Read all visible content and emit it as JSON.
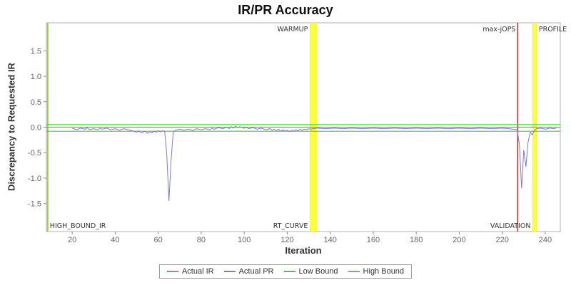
{
  "chart_data": {
    "type": "line",
    "title": "IR/PR Accuracy",
    "xlabel": "Iteration",
    "ylabel": "Discrepancy to Requested IR",
    "xlim": [
      8,
      247
    ],
    "ylim": [
      -2.05,
      2.05
    ],
    "xticks": [
      20,
      40,
      60,
      80,
      100,
      120,
      140,
      160,
      180,
      200,
      220,
      240
    ],
    "yticks": [
      -1.5,
      -1.0,
      -0.5,
      0.0,
      0.5,
      1.0,
      1.5
    ],
    "grid": false,
    "legend_position": "bottom",
    "colors": {
      "plot_border": "#b0b0b0",
      "tick_label": "#666666",
      "phase_label": "#333333",
      "band": "#ffff3d",
      "band_edge": "#e8e800"
    },
    "series": [
      {
        "name": "Actual IR",
        "color": "#e96a6a",
        "width": 1.2,
        "points": [
          [
            8,
            0.0
          ],
          [
            247,
            0.0
          ]
        ]
      },
      {
        "name": "Low Bound",
        "color": "#3fca3f",
        "width": 1.2,
        "points": [
          [
            8,
            -0.08
          ],
          [
            247,
            -0.08
          ]
        ]
      },
      {
        "name": "High Bound",
        "color": "#46d446",
        "width": 1.2,
        "points": [
          [
            8,
            0.05
          ],
          [
            247,
            0.05
          ]
        ]
      },
      {
        "name": "Actual PR",
        "color": "#7b7bd0",
        "width": 1,
        "points": [
          [
            20,
            -0.02
          ],
          [
            22,
            -0.05
          ],
          [
            24,
            -0.02
          ],
          [
            26,
            -0.04
          ],
          [
            27,
            -0.01
          ],
          [
            28,
            -0.05
          ],
          [
            30,
            -0.03
          ],
          [
            32,
            -0.05
          ],
          [
            33,
            -0.02
          ],
          [
            34,
            -0.04
          ],
          [
            36,
            -0.02
          ],
          [
            38,
            -0.05
          ],
          [
            40,
            -0.03
          ],
          [
            42,
            -0.06
          ],
          [
            44,
            -0.03
          ],
          [
            46,
            -0.05
          ],
          [
            48,
            -0.07
          ],
          [
            50,
            -0.1
          ],
          [
            51,
            -0.07
          ],
          [
            52,
            -0.11
          ],
          [
            54,
            -0.08
          ],
          [
            55,
            -0.12
          ],
          [
            56,
            -0.09
          ],
          [
            57,
            -0.11
          ],
          [
            58,
            -0.08
          ],
          [
            59,
            -0.1
          ],
          [
            60,
            -0.07
          ],
          [
            61,
            -0.09
          ],
          [
            62,
            -0.07
          ],
          [
            63,
            -0.08
          ],
          [
            64,
            -0.55
          ],
          [
            65,
            -1.45
          ],
          [
            66,
            -0.65
          ],
          [
            67,
            -0.1
          ],
          [
            68,
            -0.06
          ],
          [
            70,
            -0.04
          ],
          [
            72,
            -0.06
          ],
          [
            74,
            -0.04
          ],
          [
            76,
            -0.06
          ],
          [
            78,
            -0.03
          ],
          [
            80,
            -0.05
          ],
          [
            82,
            -0.03
          ],
          [
            84,
            -0.05
          ],
          [
            85,
            -0.02
          ],
          [
            86,
            -0.04
          ],
          [
            88,
            -0.01
          ],
          [
            90,
            -0.03
          ],
          [
            92,
            0.0
          ],
          [
            93,
            -0.03
          ],
          [
            94,
            0.01
          ],
          [
            95,
            -0.02
          ],
          [
            96,
            0.02
          ],
          [
            97,
            -0.01
          ],
          [
            98,
            0.01
          ],
          [
            100,
            -0.02
          ],
          [
            101,
            0.0
          ],
          [
            102,
            -0.03
          ],
          [
            104,
            -0.01
          ],
          [
            106,
            -0.04
          ],
          [
            108,
            -0.02
          ],
          [
            110,
            -0.05
          ],
          [
            112,
            -0.03
          ],
          [
            113,
            -0.06
          ],
          [
            114,
            -0.04
          ],
          [
            115,
            -0.07
          ],
          [
            116,
            -0.04
          ],
          [
            117,
            -0.08
          ],
          [
            118,
            -0.05
          ],
          [
            119,
            -0.08
          ],
          [
            120,
            -0.06
          ],
          [
            121,
            -0.09
          ],
          [
            122,
            -0.06
          ],
          [
            123,
            -0.08
          ],
          [
            124,
            -0.05
          ],
          [
            125,
            -0.07
          ],
          [
            126,
            -0.04
          ],
          [
            127,
            -0.06
          ],
          [
            128,
            -0.04
          ],
          [
            129,
            -0.05
          ],
          [
            130,
            -0.03
          ],
          [
            131,
            -0.04
          ],
          [
            132,
            -0.03
          ],
          [
            134,
            -0.02
          ],
          [
            138,
            -0.03
          ],
          [
            142,
            -0.02
          ],
          [
            146,
            -0.03
          ],
          [
            150,
            -0.02
          ],
          [
            155,
            -0.03
          ],
          [
            160,
            -0.02
          ],
          [
            165,
            -0.03
          ],
          [
            170,
            -0.02
          ],
          [
            175,
            -0.03
          ],
          [
            180,
            -0.02
          ],
          [
            185,
            -0.03
          ],
          [
            190,
            -0.02
          ],
          [
            195,
            -0.03
          ],
          [
            200,
            -0.02
          ],
          [
            205,
            -0.03
          ],
          [
            210,
            -0.02
          ],
          [
            215,
            -0.03
          ],
          [
            220,
            -0.02
          ],
          [
            223,
            -0.03
          ],
          [
            225,
            -0.04
          ],
          [
            227,
            -0.05
          ],
          [
            228,
            -0.35
          ],
          [
            229,
            -1.2
          ],
          [
            230,
            -0.45
          ],
          [
            230.5,
            -0.6
          ],
          [
            231,
            -0.78
          ],
          [
            232,
            -0.3
          ],
          [
            233,
            -0.1
          ],
          [
            234,
            -0.15
          ],
          [
            235,
            -0.06
          ],
          [
            236,
            -0.03
          ],
          [
            238,
            -0.02
          ],
          [
            240,
            -0.04
          ],
          [
            242,
            -0.02
          ],
          [
            244,
            -0.03
          ],
          [
            245,
            -0.02
          ]
        ]
      }
    ],
    "markers": [
      {
        "kind": "line",
        "x": 8.6,
        "color": "#9ad044",
        "width": 2,
        "labels": [
          {
            "text": "HIGH_BOUND_IR",
            "side": "bottom",
            "align": "right-of"
          }
        ]
      },
      {
        "kind": "band",
        "x0": 130.6,
        "x1": 133.4,
        "color": "#ffff3d",
        "labels": [
          {
            "text": "WARMUP",
            "side": "top",
            "align": "left-of"
          },
          {
            "text": "RT_CURVE",
            "side": "bottom",
            "align": "left-of"
          }
        ]
      },
      {
        "kind": "line",
        "x": 227.2,
        "color": "#cc2a2a",
        "width": 1.6,
        "labels": [
          {
            "text": "max-jOPS",
            "side": "top",
            "align": "left-of"
          }
        ]
      },
      {
        "kind": "band",
        "x0": 234.2,
        "x1": 236.0,
        "color": "#ffff3d",
        "labels": [
          {
            "text": "VALIDATION",
            "side": "bottom",
            "align": "left-of"
          },
          {
            "text": "PROFILE",
            "side": "top",
            "align": "right-of"
          }
        ]
      }
    ]
  },
  "legend": {
    "items": [
      {
        "label": "Actual IR",
        "color": "#e96a6a"
      },
      {
        "label": "Actual PR",
        "color": "#7b7bd0"
      },
      {
        "label": "Low Bound",
        "color": "#3fca3f"
      },
      {
        "label": "High Bound",
        "color": "#46d446"
      }
    ]
  }
}
